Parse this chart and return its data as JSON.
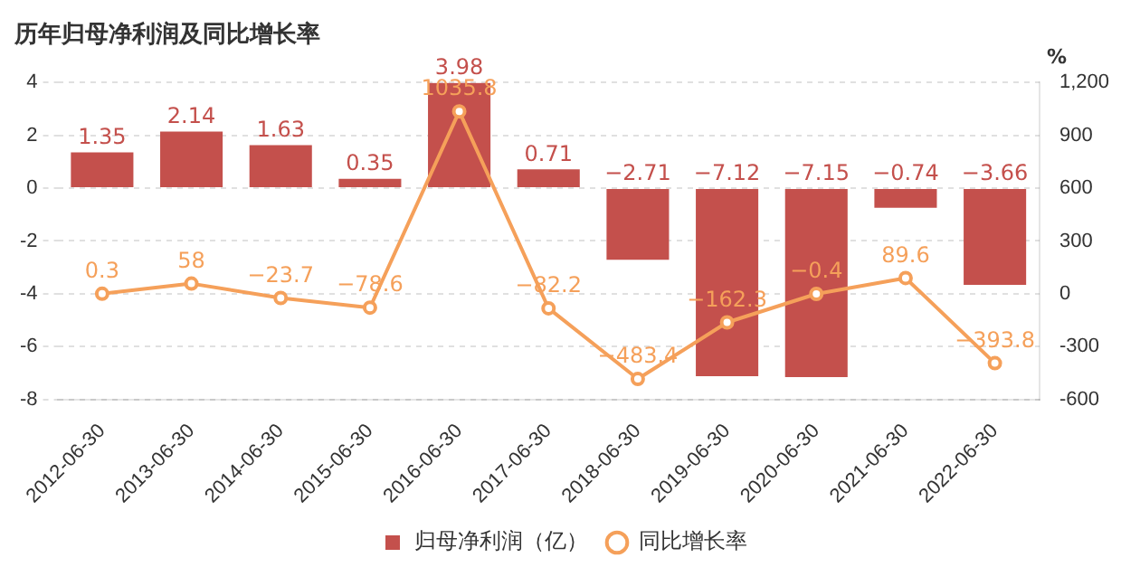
{
  "chart_data": {
    "type": "bar",
    "title": "历年归母净利润及同比增长率",
    "y2label": "%",
    "categories": [
      "2012-06-30",
      "2013-06-30",
      "2014-06-30",
      "2015-06-30",
      "2016-06-30",
      "2017-06-30",
      "2018-06-30",
      "2019-06-30",
      "2020-06-30",
      "2021-06-30",
      "2022-06-30"
    ],
    "series": [
      {
        "name": "归母净利润（亿）",
        "color": "#c4504c",
        "values": [
          1.35,
          2.14,
          1.63,
          0.35,
          3.98,
          0.71,
          -2.71,
          -7.12,
          -7.15,
          -0.74,
          -3.66
        ]
      },
      {
        "name": "同比增长率",
        "type": "line",
        "axis": "y2",
        "color": "#f5a05a",
        "marker": "circle",
        "values": [
          0.3,
          58,
          -23.7,
          -78.6,
          1035.8,
          -82.2,
          -483.4,
          -162.3,
          -0.4,
          89.6,
          -393.8
        ]
      }
    ],
    "ylim": [
      -8,
      4
    ],
    "yticks": [
      -8,
      -6,
      -4,
      -2,
      0,
      2,
      4
    ],
    "y2lim": [
      -600,
      1200
    ],
    "y2ticks": [
      -600,
      -300,
      0,
      300,
      600,
      900,
      "1,200"
    ],
    "grid": "y",
    "legend": "bottom",
    "data_labels": true
  }
}
